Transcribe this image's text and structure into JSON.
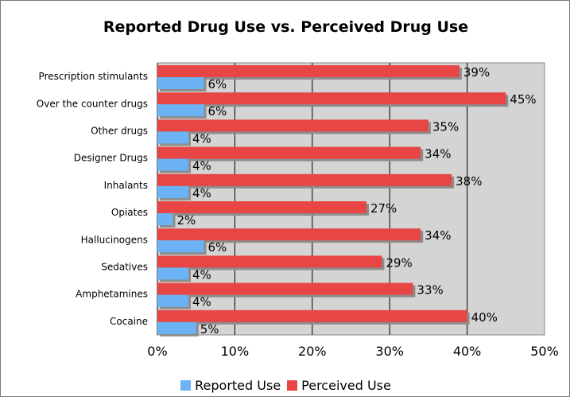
{
  "chart_data": {
    "type": "bar",
    "orientation": "horizontal",
    "title": "Reported Drug Use vs. Perceived Drug Use",
    "categories": [
      "Prescription stimulants",
      "Over the counter drugs",
      "Other drugs",
      "Designer Drugs",
      "Inhalants",
      "Opiates",
      "Hallucinogens",
      "Sedatives",
      "Amphetamines",
      "Cocaine"
    ],
    "series": [
      {
        "name": "Reported Use",
        "color": "#6bb3f5",
        "values": [
          6,
          6,
          4,
          4,
          4,
          2,
          6,
          4,
          4,
          5
        ],
        "labels": [
          "6%",
          "6%",
          "4%",
          "4%",
          "4%",
          "2%",
          "6%",
          "4%",
          "4%",
          "5%"
        ]
      },
      {
        "name": "Perceived Use",
        "color": "#e84545",
        "values": [
          39,
          45,
          35,
          34,
          38,
          27,
          34,
          29,
          33,
          40
        ],
        "labels": [
          "39%",
          "45%",
          "35%",
          "34%",
          "38%",
          "27%",
          "34%",
          "29%",
          "33%",
          "40%"
        ]
      }
    ],
    "xlim": [
      0,
      50
    ],
    "xticks": [
      0,
      10,
      20,
      30,
      40,
      50
    ],
    "xtick_labels": [
      "0%",
      "10%",
      "20%",
      "30%",
      "40%",
      "50%"
    ],
    "plot_background": "#d4d4d4",
    "grid": "vertical",
    "legend_position": "bottom"
  }
}
